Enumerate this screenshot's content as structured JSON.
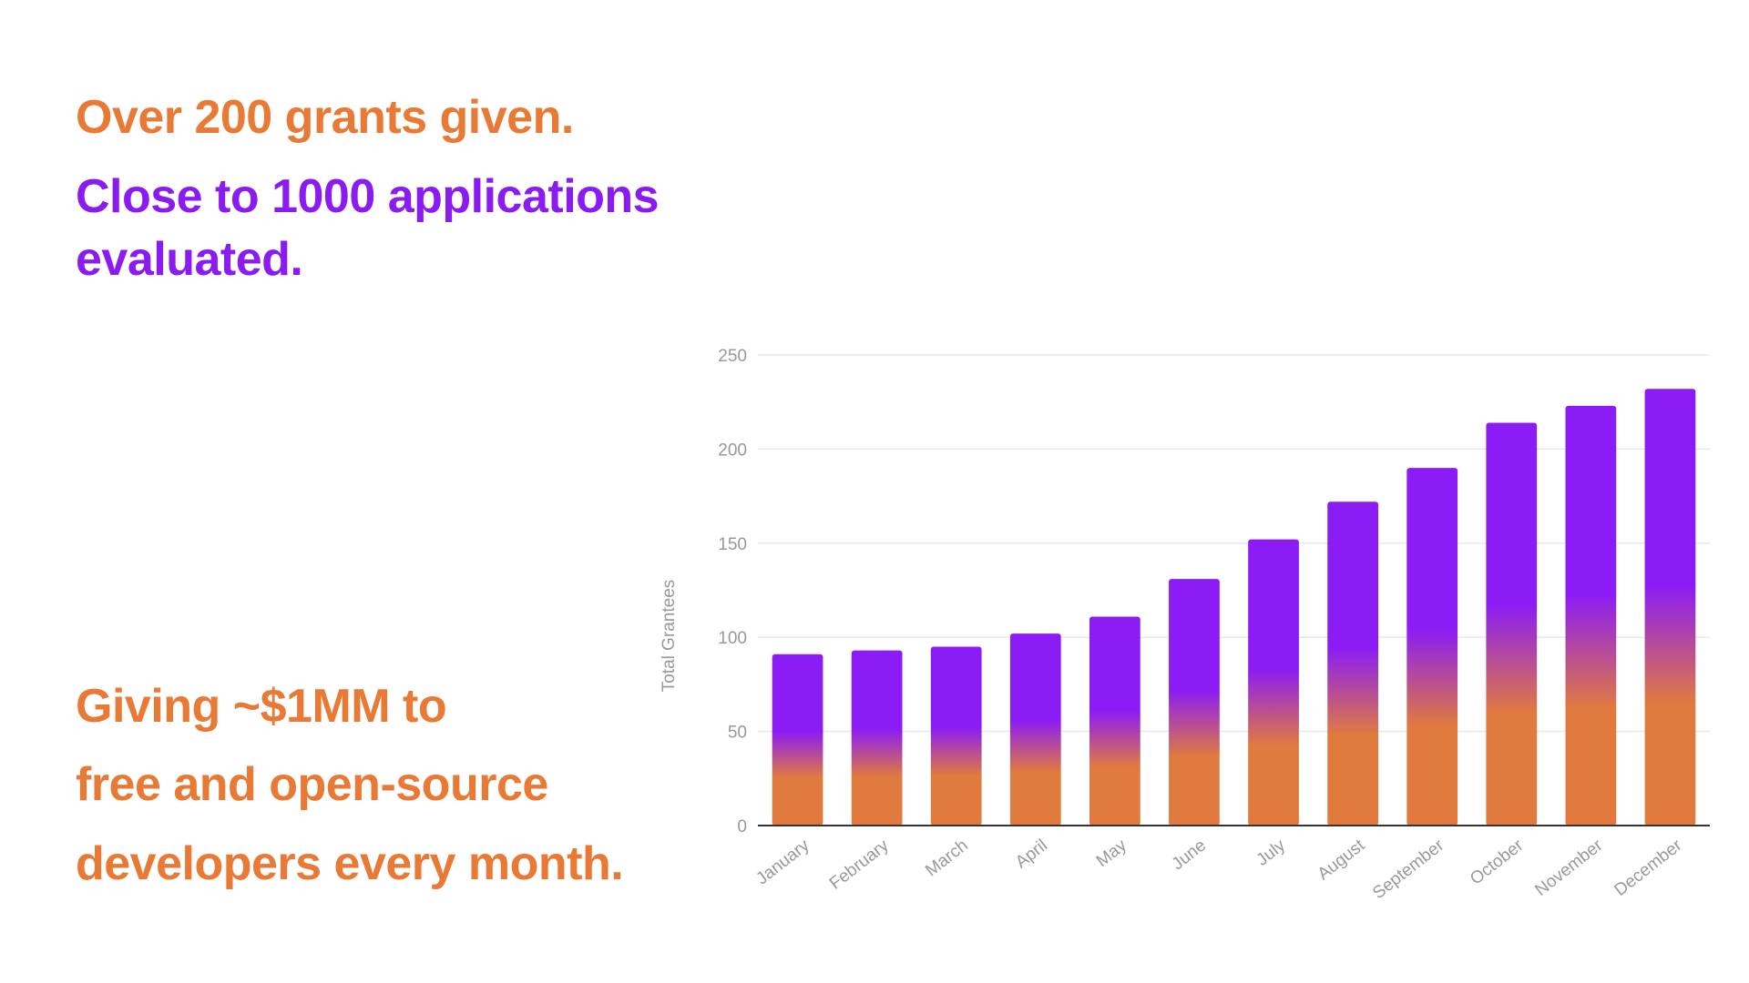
{
  "text": {
    "headline_1": "Over 200 grants given.",
    "headline_2": "Close to 1000 applications evaluated.",
    "headline_3_lines": [
      "Giving ~$1MM to",
      "free and open-source",
      "developers every month."
    ]
  },
  "colors": {
    "orange": "#E87A35",
    "purple": "#8A1CF2",
    "bar_top": "#8B1CF5",
    "bar_bottom": "#E07A3F",
    "axis_text": "#999999",
    "grid": "#e8e8e8",
    "axis_line": "#333333"
  },
  "chart_data": {
    "type": "bar",
    "title": "",
    "xlabel": "",
    "ylabel": "Total Grantees",
    "ylim": [
      0,
      250
    ],
    "yticks": [
      0,
      50,
      100,
      150,
      200,
      250
    ],
    "grid": true,
    "legend": "none",
    "categories": [
      "January",
      "February",
      "March",
      "April",
      "May",
      "June",
      "July",
      "August",
      "September",
      "October",
      "November",
      "December"
    ],
    "values": [
      91,
      93,
      95,
      102,
      111,
      131,
      152,
      172,
      190,
      214,
      223,
      232
    ]
  }
}
